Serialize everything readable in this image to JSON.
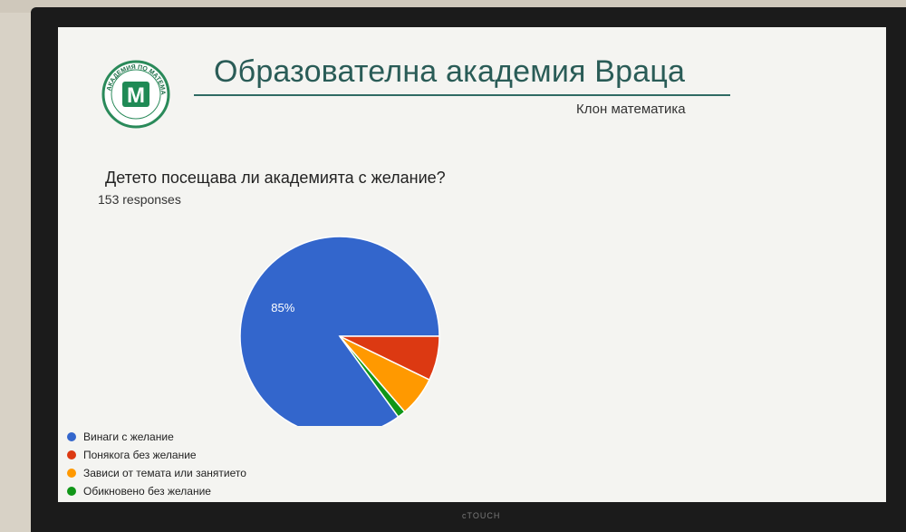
{
  "slide": {
    "title": "Образователна академия Враца",
    "subtitle": "Клон математика",
    "logo_text": "АКАДЕМИЯ ПО МАТЕМАТИКА • ОБЩИНА ВРАЦА",
    "logo_letter": "M"
  },
  "bezel_brand": "cTOUCH",
  "chart_data": {
    "type": "pie",
    "title": "Детето посещава ли академията с желание?",
    "subtitle": "153 responses",
    "slices": [
      {
        "label": "Винаги с желание",
        "value": 85,
        "color": "#3366cc",
        "data_label": "85%"
      },
      {
        "label": "Понякога без желание",
        "value": 7.2,
        "color": "#dc3912",
        "data_label": ""
      },
      {
        "label": "Зависи от темата или занятието",
        "value": 6.5,
        "color": "#ff9900",
        "data_label": ""
      },
      {
        "label": "Обикновено без желание",
        "value": 1.3,
        "color": "#109618",
        "data_label": ""
      }
    ],
    "legend_position": "bottom-left"
  }
}
